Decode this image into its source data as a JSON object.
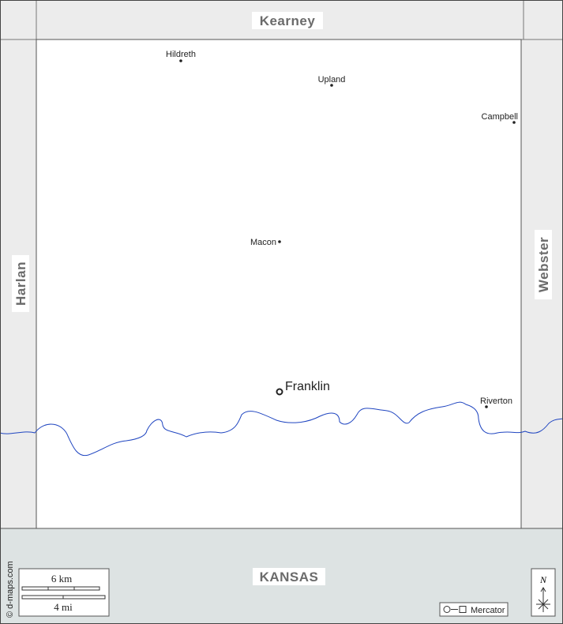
{
  "regions": {
    "north": "Kearney",
    "west": "Harlan",
    "east": "Webster",
    "south": "KANSAS"
  },
  "places": [
    {
      "name": "Hildreth"
    },
    {
      "name": "Upland"
    },
    {
      "name": "Campbell"
    },
    {
      "name": "Macon"
    },
    {
      "name": "Franklin"
    },
    {
      "name": "Riverton"
    }
  ],
  "scale": {
    "metric": "6 km",
    "imperial": "4 mi"
  },
  "compass": "N",
  "projection": "Mercator",
  "credit": "© d-maps.com"
}
